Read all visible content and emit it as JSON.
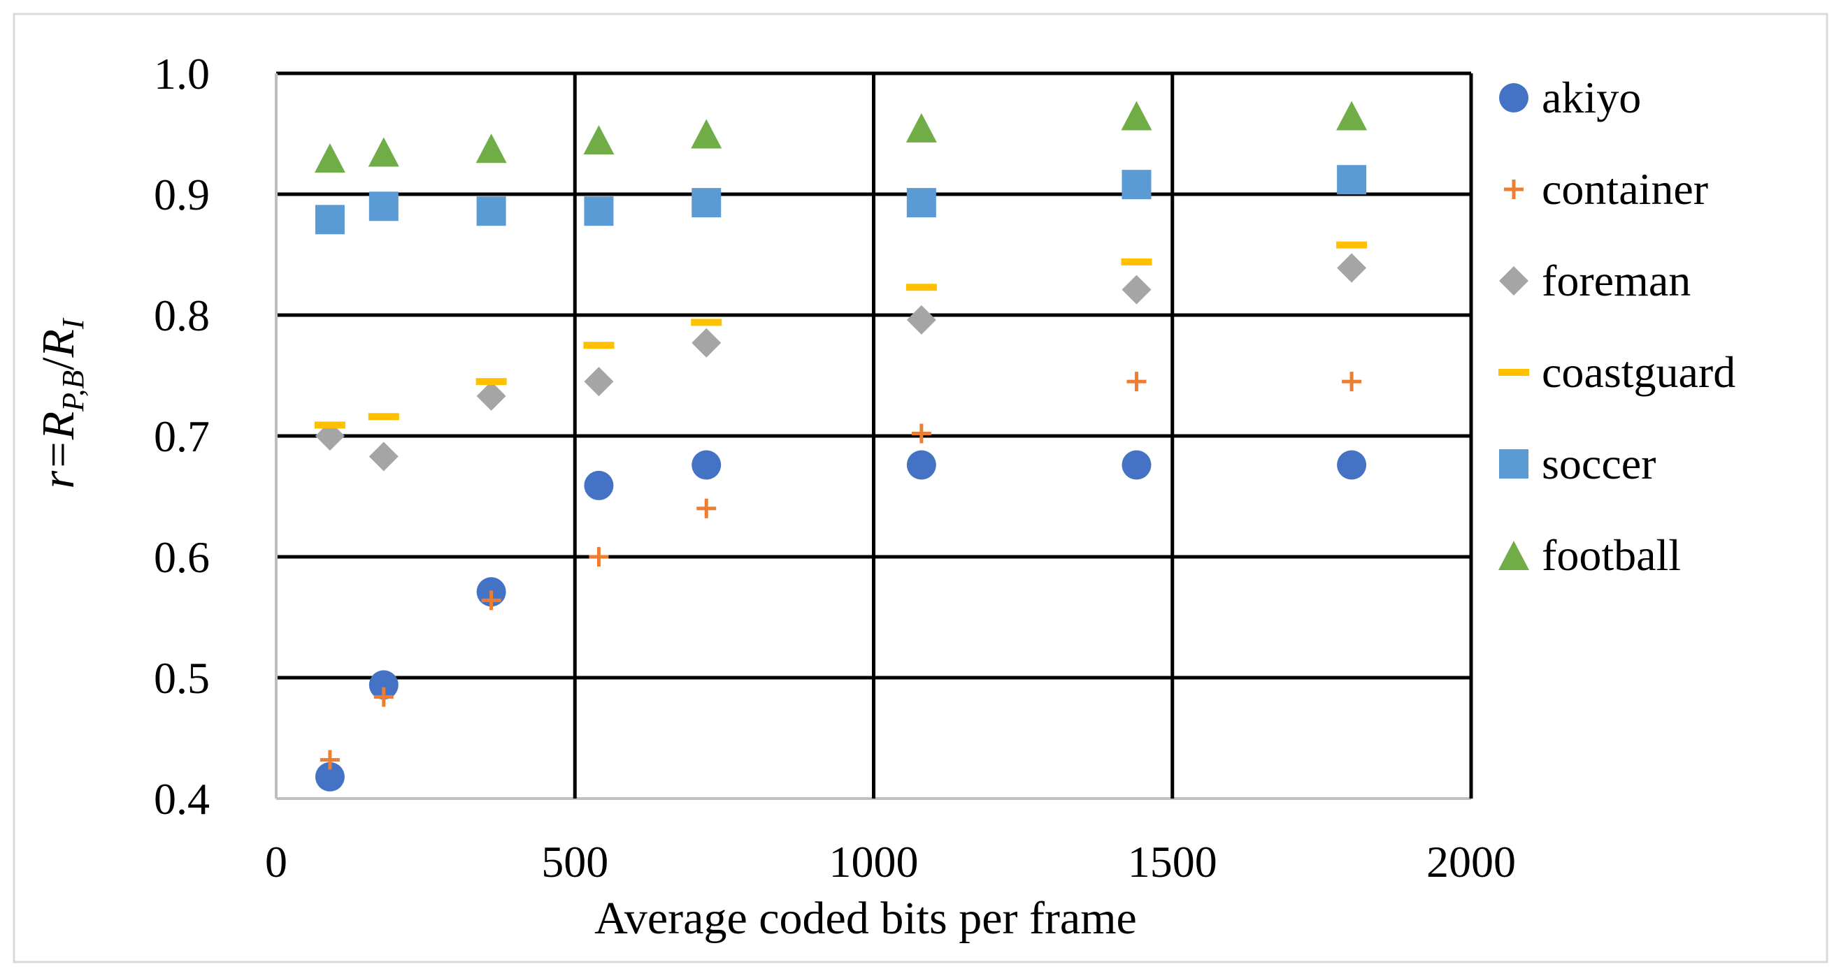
{
  "chart_data": {
    "type": "scatter",
    "title": "",
    "xlabel": "Average coded bits per frame",
    "ylabel": {
      "prefix": "r=",
      "r1": "R",
      "sub1": "P,B",
      "slash": "/",
      "r2": "R",
      "sub2": "I"
    },
    "xlim": [
      0,
      2000
    ],
    "ylim": [
      0.4,
      1.0
    ],
    "xticks": [
      0,
      500,
      1000,
      1500,
      2000
    ],
    "xtick_labels": [
      "0",
      "500",
      "1000",
      "1500",
      "2000"
    ],
    "yticks": [
      0.4,
      0.5,
      0.6,
      0.7,
      0.8,
      0.9,
      1.0
    ],
    "ytick_labels": [
      "0.4",
      "0.5",
      "0.6",
      "0.7",
      "0.8",
      "0.9",
      "1.0"
    ],
    "grid": true,
    "legend_position": "right",
    "x": [
      90,
      180,
      360,
      540,
      720,
      1080,
      1440,
      1800
    ],
    "series": [
      {
        "name": "akiyo",
        "marker": "circle",
        "color": "#4472C4",
        "values": [
          0.418,
          0.494,
          0.571,
          0.659,
          0.676,
          0.676,
          0.676,
          0.676
        ]
      },
      {
        "name": "container",
        "marker": "plus",
        "color": "#ED7D31",
        "values": [
          0.432,
          0.484,
          0.564,
          0.6,
          0.64,
          0.702,
          0.745,
          0.745
        ]
      },
      {
        "name": "foreman",
        "marker": "diamond",
        "color": "#A5A5A5",
        "values": [
          0.7,
          0.683,
          0.733,
          0.745,
          0.777,
          0.796,
          0.821,
          0.839
        ]
      },
      {
        "name": "coastguard",
        "marker": "dash",
        "color": "#FFC000",
        "values": [
          0.709,
          0.716,
          0.745,
          0.775,
          0.794,
          0.823,
          0.844,
          0.858
        ]
      },
      {
        "name": "soccer",
        "marker": "square",
        "color": "#5B9BD5",
        "values": [
          0.879,
          0.89,
          0.886,
          0.886,
          0.893,
          0.893,
          0.908,
          0.912
        ]
      },
      {
        "name": "football",
        "marker": "triangle",
        "color": "#70AD47",
        "values": [
          0.93,
          0.935,
          0.938,
          0.945,
          0.95,
          0.955,
          0.965,
          0.965
        ]
      }
    ]
  }
}
